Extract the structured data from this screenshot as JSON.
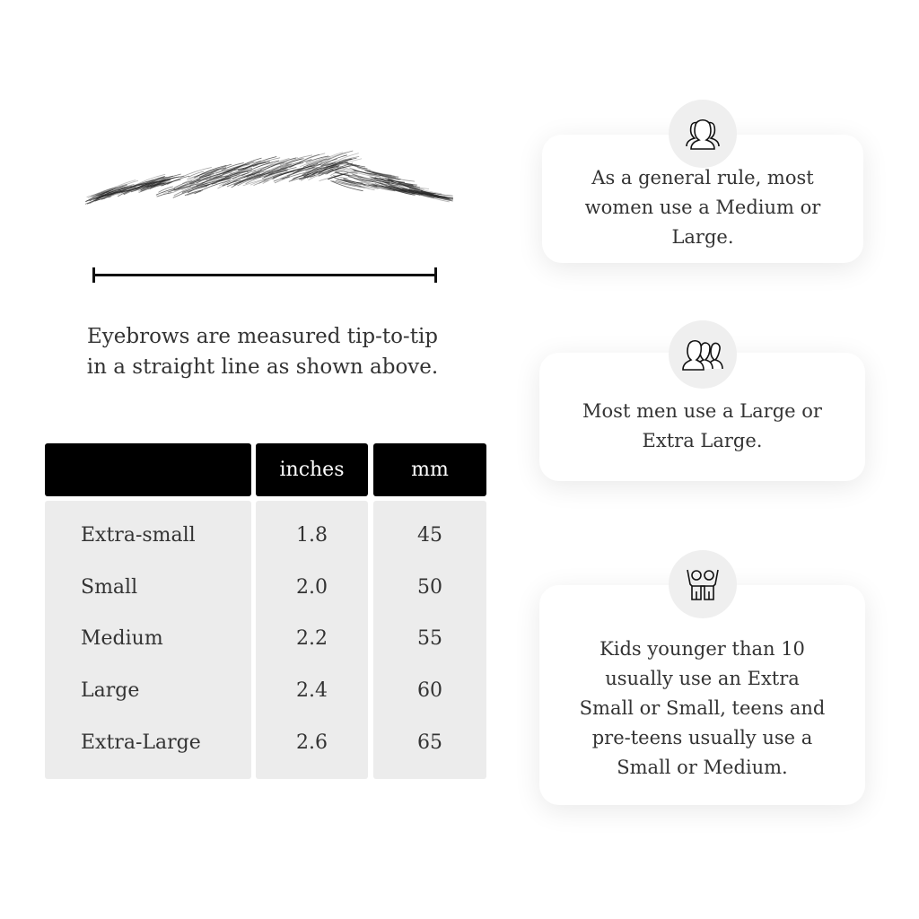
{
  "caption": [
    "Eyebrows are measured tip-to-tip",
    "in a straight line as shown above."
  ],
  "table": {
    "headers": [
      "",
      "inches",
      "mm"
    ],
    "rows": [
      {
        "size": "Extra-small",
        "inches": "1.8",
        "mm": "45"
      },
      {
        "size": "Small",
        "inches": "2.0",
        "mm": "50"
      },
      {
        "size": "Medium",
        "inches": "2.2",
        "mm": "55"
      },
      {
        "size": "Large",
        "inches": "2.4",
        "mm": "60"
      },
      {
        "size": "Extra-Large",
        "inches": "2.6",
        "mm": "65"
      }
    ]
  },
  "cards": [
    {
      "icon": "women-group-icon",
      "text": "As a general rule, most women use a Medium or Large."
    },
    {
      "icon": "men-group-icon",
      "text": "Most men use a Large or Extra Large."
    },
    {
      "icon": "kids-icon",
      "text": "Kids younger than 10 usually use an Extra Small or Small, teens and pre-teens usually use a Small or Medium."
    }
  ]
}
